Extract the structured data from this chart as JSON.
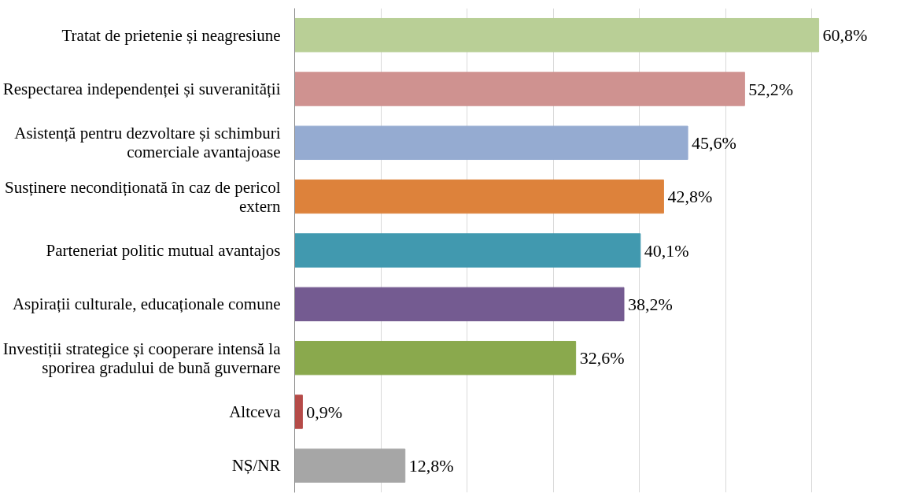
{
  "chart_data": {
    "type": "bar",
    "orientation": "horizontal",
    "categories": [
      "Tratat de prietenie și neagresiune",
      "Respectarea independenței și suveranității",
      "Asistență pentru dezvoltare și schimburi comerciale avantajoase",
      "Susținere necondiționată în caz de pericol extern",
      "Parteneriat politic mutual avantajos",
      "Aspirații culturale, educaționale comune",
      "Investiții strategice și cooperare intensă la sporirea gradului de bună guvernare",
      "Altceva",
      "NȘ/NR"
    ],
    "values": [
      60.8,
      52.2,
      45.6,
      42.8,
      40.1,
      38.2,
      32.6,
      0.9,
      12.8
    ],
    "colors": [
      "#b9cf96",
      "#cf9290",
      "#95abd1",
      "#dd823b",
      "#4199af",
      "#745b91",
      "#8aa94d",
      "#b54b48",
      "#a6a6a6"
    ],
    "value_labels": [
      "60,8%",
      "52,2%",
      "45,6%",
      "42,8%",
      "40,1%",
      "38,2%",
      "32,6%",
      "0,9%",
      "12,8%"
    ],
    "grid": "x",
    "tick_labels": "y"
  }
}
